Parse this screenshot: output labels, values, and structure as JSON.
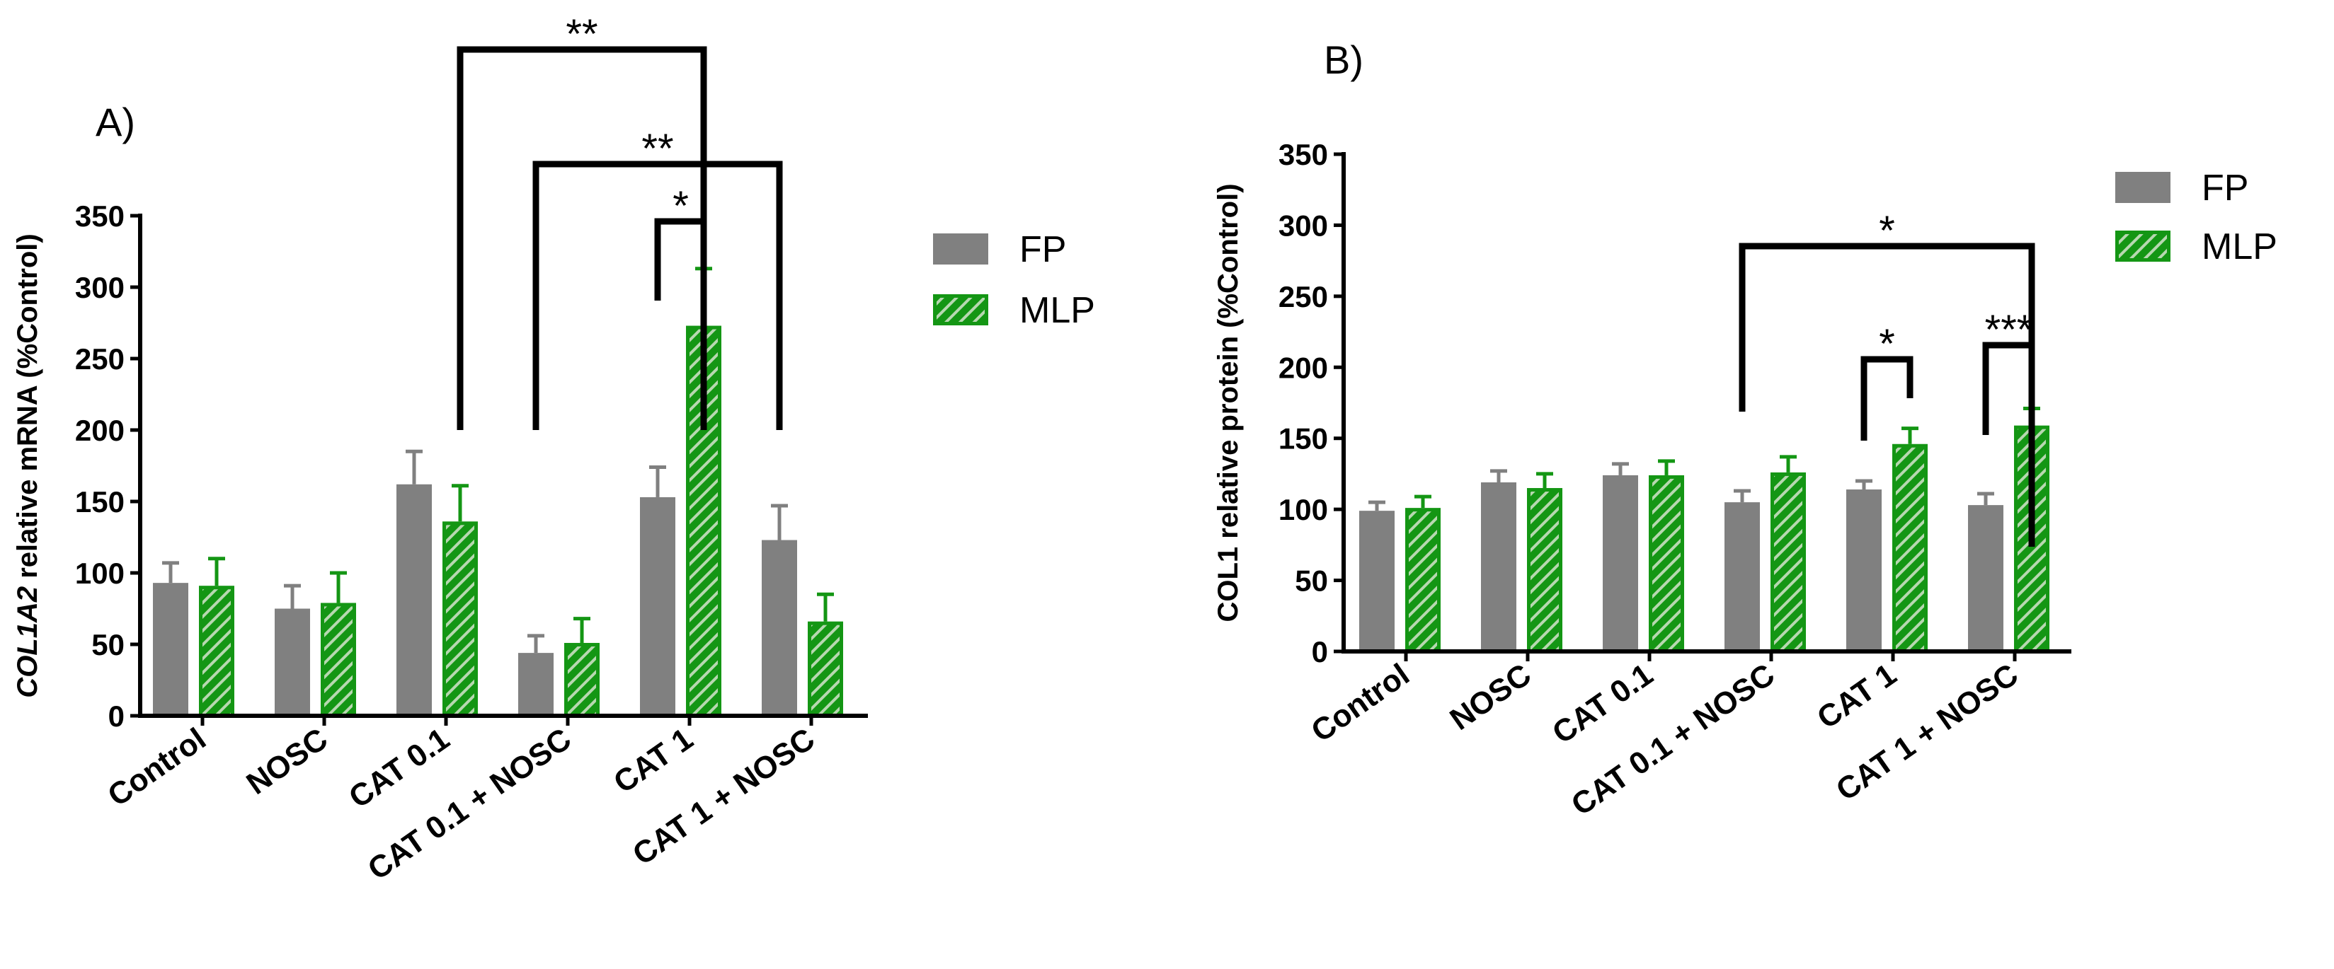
{
  "colors": {
    "FP": "#808080",
    "MLP": "#149614",
    "MLP_stripe": "#b7d8b0"
  },
  "chart_data": [
    {
      "id": "A",
      "type": "bar",
      "panel_label": "A)",
      "ylabel_italic": "COL1A2",
      "ylabel_rest": " relative mRNA (%Control)",
      "ylim": [
        0,
        350
      ],
      "yticks": [
        0,
        50,
        100,
        150,
        200,
        250,
        300,
        350
      ],
      "categories": [
        "Control",
        "NOSC",
        "CAT 0.1",
        "CAT 0.1 + NOSC",
        "CAT 1",
        "CAT 1 + NOSC"
      ],
      "series": [
        {
          "name": "FP",
          "values": [
            93,
            75,
            162,
            44,
            153,
            123
          ],
          "errors": [
            14,
            16,
            23,
            12,
            21,
            24
          ]
        },
        {
          "name": "MLP",
          "values": [
            91,
            79,
            136,
            51,
            273,
            66
          ],
          "errors": [
            19,
            21,
            25,
            17,
            40,
            19
          ]
        }
      ],
      "legend": [
        "FP",
        "MLP"
      ],
      "significance": [
        {
          "label": "*",
          "from": [
            4,
            "FP"
          ],
          "to": [
            4,
            "MLP"
          ]
        },
        {
          "label": "**",
          "from": [
            3,
            "FP"
          ],
          "to": [
            5,
            "FP"
          ]
        },
        {
          "label": "**",
          "from": [
            2,
            "MLP"
          ],
          "to": [
            4,
            "MLP"
          ]
        }
      ]
    },
    {
      "id": "B",
      "type": "bar",
      "panel_label": "B)",
      "ylabel_italic": "",
      "ylabel_rest": "COL1 relative protein (%Control)",
      "ylim": [
        0,
        350
      ],
      "yticks": [
        0,
        50,
        100,
        150,
        200,
        250,
        300,
        350
      ],
      "categories": [
        "Control",
        "NOSC",
        "CAT 0.1",
        "CAT 0.1 + NOSC",
        "CAT 1",
        "CAT 1 + NOSC"
      ],
      "series": [
        {
          "name": "FP",
          "values": [
            99,
            119,
            124,
            105,
            114,
            103
          ],
          "errors": [
            6,
            8,
            8,
            8,
            6,
            8
          ]
        },
        {
          "name": "MLP",
          "values": [
            101,
            115,
            124,
            126,
            146,
            159
          ],
          "errors": [
            8,
            10,
            10,
            11,
            11,
            12
          ]
        }
      ],
      "legend": [
        "FP",
        "MLP"
      ],
      "significance": [
        {
          "label": "*",
          "from": [
            4,
            "FP"
          ],
          "to": [
            4,
            "MLP"
          ]
        },
        {
          "label": "***",
          "from": [
            5,
            "FP"
          ],
          "to": [
            5,
            "MLP"
          ]
        },
        {
          "label": "*",
          "from": [
            3,
            "FP"
          ],
          "to": [
            5,
            "MLP"
          ]
        }
      ]
    }
  ]
}
